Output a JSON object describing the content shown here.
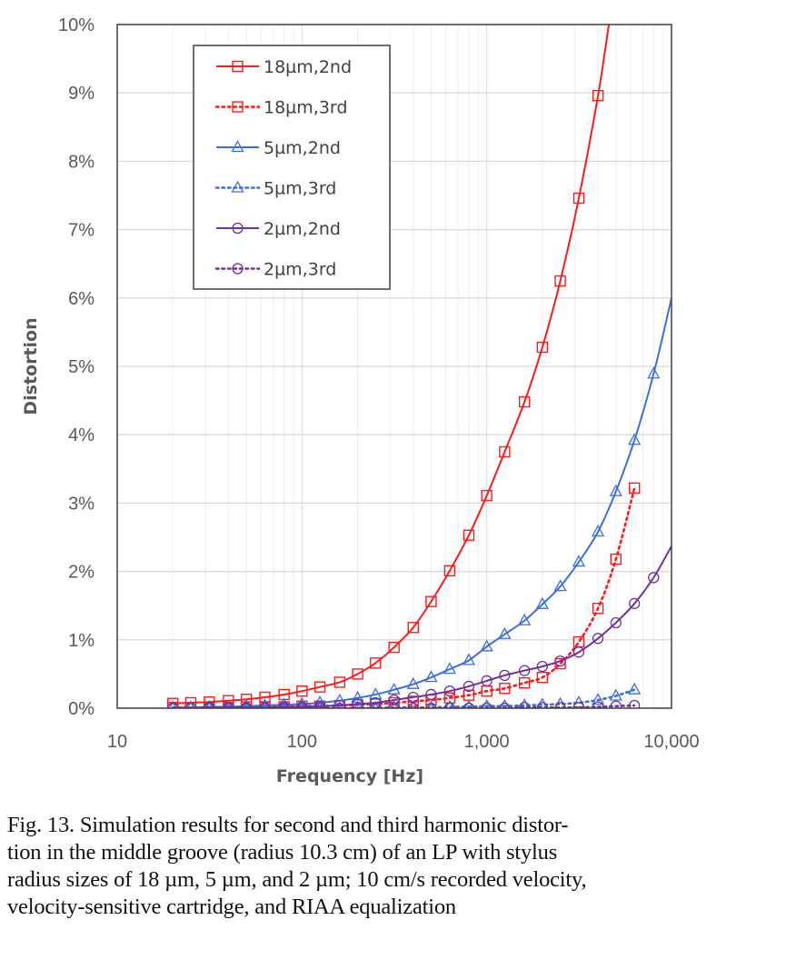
{
  "chart_data": {
    "type": "line",
    "title": "",
    "xlabel": "Frequency [Hz]",
    "ylabel": "Distortion",
    "xscale": "log",
    "xlim": [
      10,
      10000
    ],
    "ylim": [
      0,
      10
    ],
    "x_ticks": [
      10,
      100,
      1000,
      10000
    ],
    "x_tick_labels": [
      "10",
      "100",
      "1,000",
      "10,000"
    ],
    "y_ticks": [
      0,
      1,
      2,
      3,
      4,
      5,
      6,
      7,
      8,
      9,
      10
    ],
    "y_tick_labels": [
      "0%",
      "1%",
      "2%",
      "3%",
      "4%",
      "5%",
      "6%",
      "7%",
      "8%",
      "9%",
      "10%"
    ],
    "grid": true,
    "legend_position": "top-left",
    "x": [
      20,
      25,
      31.5,
      40,
      50,
      63,
      80,
      100,
      125,
      160,
      200,
      250,
      315,
      400,
      500,
      630,
      800,
      1000,
      1250,
      1600,
      2000,
      2500,
      3150,
      4000,
      5000,
      6300,
      8000
    ],
    "series": [
      {
        "name": "18µm,2nd",
        "color": "#ff1a1a",
        "style": "solid",
        "marker": "square",
        "values": [
          0.07,
          0.08,
          0.09,
          0.11,
          0.13,
          0.16,
          0.2,
          0.25,
          0.31,
          0.38,
          0.5,
          0.66,
          0.89,
          1.18,
          1.56,
          2.01,
          2.53,
          3.11,
          3.75,
          4.48,
          5.28,
          6.25,
          7.46,
          8.96,
          null,
          null,
          null
        ],
        "line_end": [
          4580,
          10
        ]
      },
      {
        "name": "18µm,3rd",
        "color": "#ff1a1a",
        "style": "dotted",
        "marker": "square",
        "values": [
          0.01,
          0.01,
          0.01,
          0.01,
          0.02,
          0.02,
          0.02,
          0.03,
          0.03,
          0.04,
          0.05,
          0.06,
          0.08,
          0.1,
          0.12,
          0.15,
          0.19,
          0.25,
          0.29,
          0.37,
          0.45,
          0.65,
          0.97,
          1.46,
          2.18,
          3.22,
          null
        ]
      },
      {
        "name": "5µm,2nd",
        "color": "#3a6fe0",
        "style": "solid",
        "marker": "triangle",
        "values": [
          0.01,
          0.01,
          0.02,
          0.02,
          0.03,
          0.04,
          0.05,
          0.06,
          0.08,
          0.11,
          0.15,
          0.2,
          0.27,
          0.35,
          0.45,
          0.57,
          0.7,
          0.9,
          1.08,
          1.28,
          1.52,
          1.78,
          2.14,
          2.58,
          3.17,
          3.92,
          4.89
        ],
        "line_end": [
          10000,
          6.0
        ]
      },
      {
        "name": "5µm,3rd",
        "color": "#3a6fe0",
        "style": "dotted",
        "marker": "triangle",
        "values": [
          0,
          0,
          0,
          0,
          0,
          0,
          0,
          0,
          0,
          0,
          0,
          0,
          0.01,
          0.01,
          0.01,
          0.02,
          0.02,
          0.03,
          0.03,
          0.04,
          0.05,
          0.06,
          0.08,
          0.12,
          0.18,
          0.27,
          null
        ]
      },
      {
        "name": "2µm,2nd",
        "color": "#7030a0",
        "style": "solid",
        "marker": "circle",
        "values": [
          0,
          0,
          0.01,
          0.01,
          0.01,
          0.01,
          0.02,
          0.02,
          0.03,
          0.04,
          0.06,
          0.08,
          0.12,
          0.16,
          0.2,
          0.25,
          0.32,
          0.4,
          0.48,
          0.55,
          0.61,
          0.69,
          0.82,
          1.02,
          1.25,
          1.53,
          1.91
        ],
        "line_end": [
          10000,
          2.37
        ]
      },
      {
        "name": "2µm,3rd",
        "color": "#7030a0",
        "style": "dotted",
        "marker": "circle",
        "values": [
          0,
          0,
          0,
          0,
          0,
          0,
          0,
          0,
          0,
          0,
          0,
          0,
          0,
          0,
          0,
          0,
          0,
          0,
          0,
          0.01,
          0.01,
          0.01,
          0.01,
          0.02,
          0.03,
          0.04,
          null
        ]
      }
    ]
  },
  "caption": {
    "lines": [
      "Fig. 13.  Simulation results for second and third harmonic distor-",
      "tion in the middle groove (radius 10.3 cm) of an LP with stylus",
      "radius sizes of 18 µm, 5 µm, and 2 µm; 10 cm/s recorded velocity,",
      "velocity-sensitive cartridge, and RIAA equalization"
    ]
  }
}
